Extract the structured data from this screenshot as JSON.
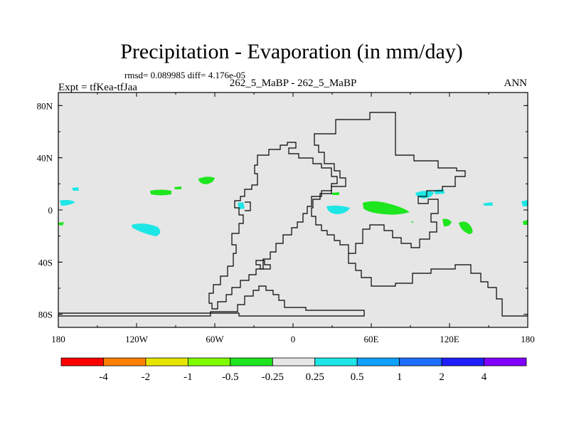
{
  "title": "Precipitation - Evaporation (in mm/day)",
  "stats": "rmsd= 0.089985 diff= 4.176e-05",
  "subtitle_center": "262_5_MaBP - 262_5_MaBP",
  "subtitle_left": "Expt = tfKea-tfJaa",
  "subtitle_right": "ANN",
  "map": {
    "x_ticks": [
      "180",
      "120W",
      "60W",
      "0",
      "60E",
      "120E",
      "180"
    ],
    "y_ticks": [
      "80N",
      "40N",
      "0",
      "40S",
      "80S"
    ],
    "land_color": "#e6e6e6",
    "coastline_color": "#000000",
    "projection": "cylindrical equidistant",
    "lon_range": [
      -180,
      180
    ],
    "lat_range": [
      -90,
      90
    ]
  },
  "colorbar": {
    "colors": [
      "#ff0000",
      "#ff8000",
      "#e6e600",
      "#80ff00",
      "#1ee61e",
      "#e6e6e6",
      "#1ee6e6",
      "#0ea0ff",
      "#1e6eff",
      "#1e1eff",
      "#8000ff"
    ],
    "labels": [
      "-4",
      "-2",
      "-1",
      "-0.5",
      "-0.25",
      "0.25",
      "0.5",
      "1",
      "2",
      "4"
    ]
  }
}
